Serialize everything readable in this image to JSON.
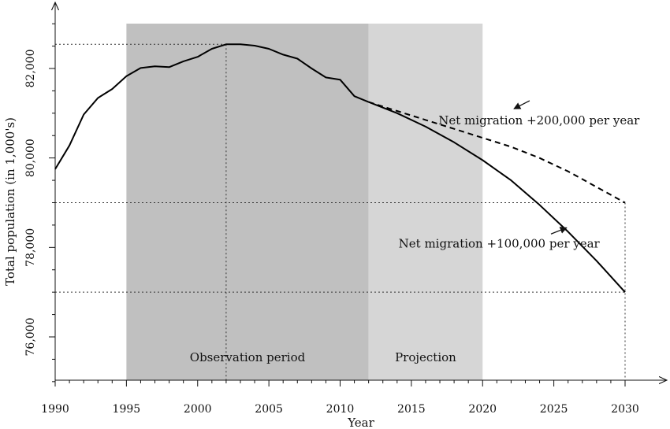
{
  "chart_data": {
    "type": "line",
    "xlabel": "Year",
    "ylabel": "Total population (in 1,000's)",
    "xlim": [
      1990,
      2032
    ],
    "ylim": [
      75000,
      83500
    ],
    "x_ticks": [
      1990,
      1995,
      2000,
      2005,
      2010,
      2015,
      2020,
      2025,
      2030
    ],
    "y_ticks": [
      76000,
      78000,
      80000,
      82000
    ],
    "x_tick_labels": [
      "1990",
      "1995",
      "2000",
      "2005",
      "2010",
      "2015",
      "2020",
      "2025",
      "2030"
    ],
    "y_tick_labels": [
      "76,000",
      "78,000",
      "80,000",
      "82,000"
    ],
    "shaded_regions": [
      {
        "label": "Observation period",
        "from": 1995,
        "to": 2012,
        "color": "#c0c0c0"
      },
      {
        "label": "Projection",
        "from": 2012,
        "to": 2020,
        "color": "#d6d6d6"
      }
    ],
    "series": [
      {
        "style": "solid",
        "x": [
          1990,
          1991,
          1992,
          1993,
          1994,
          1995,
          1996,
          1997,
          1998,
          1999,
          2000,
          2001,
          2002,
          2003,
          2004,
          2005,
          2006,
          2007,
          2008,
          2009,
          2010,
          2011,
          2012
        ],
        "y": [
          79750,
          80280,
          80970,
          81340,
          81540,
          81830,
          82010,
          82050,
          82030,
          82160,
          82260,
          82440,
          82540,
          82540,
          82510,
          82440,
          82310,
          82220,
          82000,
          81800,
          81750,
          81380,
          81250
        ]
      },
      {
        "name": "Net migration +100,000 per year",
        "style": "solid",
        "x": [
          2012,
          2014,
          2016,
          2018,
          2020,
          2022,
          2024,
          2026,
          2028,
          2030
        ],
        "y": [
          81250,
          81000,
          80700,
          80350,
          79950,
          79500,
          78950,
          78350,
          77700,
          77000
        ]
      },
      {
        "name": "Net migration +200,000 per year",
        "style": "dashed",
        "x": [
          2012,
          2014,
          2016,
          2018,
          2020,
          2022,
          2024,
          2026,
          2028,
          2030
        ],
        "y": [
          81250,
          81050,
          80850,
          80650,
          80450,
          80250,
          80000,
          79700,
          79350,
          79000
        ]
      }
    ],
    "reference_lines": {
      "peak": {
        "x": 2002,
        "y": 82540
      },
      "end_200k": {
        "x": 2030,
        "y": 79000
      },
      "end_100k": {
        "x": 2030,
        "y": 77000
      }
    },
    "annotations": [
      {
        "text": "Net migration +200,000 per year",
        "anchor": {
          "x": 2020,
          "y": 80750
        },
        "arrow_from": {
          "x": 2023.3,
          "y": 81280
        },
        "arrow_to": {
          "x": 2022.2,
          "y": 81100
        }
      },
      {
        "text": "Net migration +100,000 per year",
        "anchor": {
          "x": 2025.5,
          "y": 78000
        },
        "arrow_from": {
          "x": 2024.8,
          "y": 78300
        },
        "arrow_to": {
          "x": 2025.9,
          "y": 78440
        }
      }
    ]
  }
}
